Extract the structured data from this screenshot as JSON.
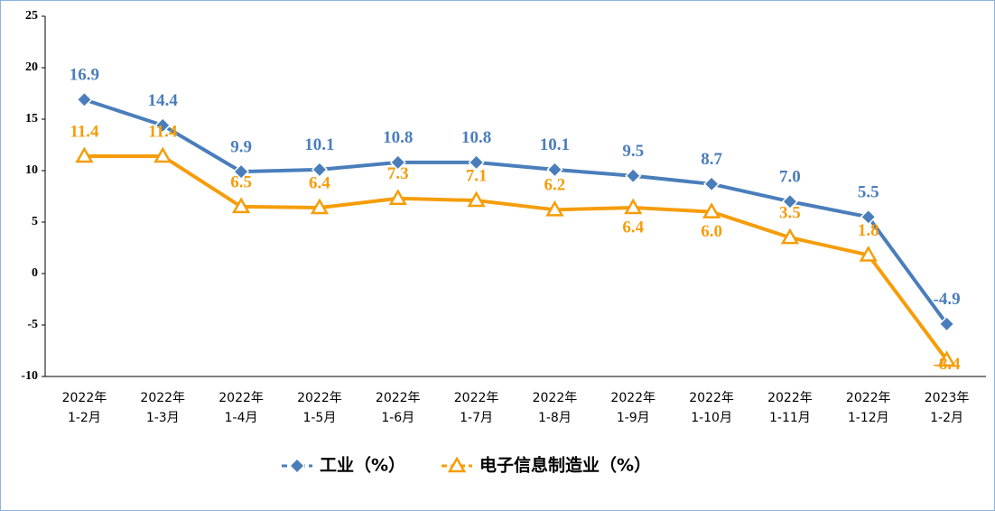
{
  "chart_data": {
    "type": "line",
    "categories": [
      [
        "2022年",
        "1-2月"
      ],
      [
        "2022年",
        "1-3月"
      ],
      [
        "2022年",
        "1-4月"
      ],
      [
        "2022年",
        "1-5月"
      ],
      [
        "2022年",
        "1-6月"
      ],
      [
        "2022年",
        "1-7月"
      ],
      [
        "2022年",
        "1-8月"
      ],
      [
        "2022年",
        "1-9月"
      ],
      [
        "2022年",
        "1-10月"
      ],
      [
        "2022年",
        "1-11月"
      ],
      [
        "2022年",
        "1-12月"
      ],
      [
        "2023年",
        "1-2月"
      ]
    ],
    "series": [
      {
        "name": "工业（%）",
        "color": "#4a7ebb",
        "marker": "diamond",
        "values": [
          16.9,
          14.4,
          9.9,
          10.1,
          10.8,
          10.8,
          10.1,
          9.5,
          8.7,
          7.0,
          5.5,
          -4.9
        ],
        "value_labels": [
          "16.9",
          "14.4",
          "9.9",
          "10.1",
          "10.8",
          "10.8",
          "10.1",
          "9.5",
          "8.7",
          "7.0",
          "5.5",
          "-4.9"
        ]
      },
      {
        "name": "电子信息制造业（%）",
        "color": "#f59d0b",
        "marker": "triangle",
        "values": [
          11.4,
          11.4,
          6.5,
          6.4,
          7.3,
          7.1,
          6.2,
          6.4,
          6.0,
          3.5,
          1.8,
          -8.4
        ],
        "value_labels": [
          "11.4",
          "11.4",
          "6.5",
          "6.4",
          "7.3",
          "7.1",
          "6.2",
          "6.4",
          "6.0",
          "3.5",
          "1.8",
          "-8.4"
        ]
      }
    ],
    "ylim": [
      -10,
      25
    ],
    "yticks": [
      -10,
      -5,
      0,
      5,
      10,
      15,
      20,
      25
    ],
    "grid": false,
    "legend": "bottom"
  }
}
